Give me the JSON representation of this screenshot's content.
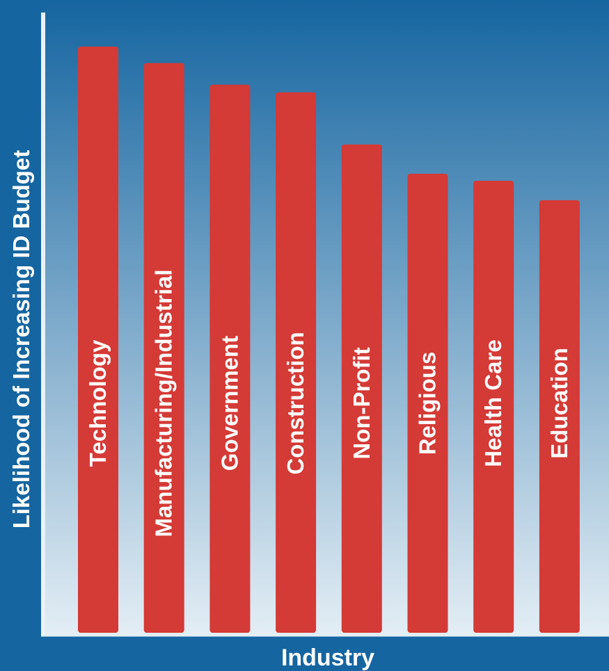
{
  "chart_data": {
    "type": "bar",
    "orientation": "vertical",
    "xlabel": "Industry",
    "ylabel": "Likelihood of Increasing ID Budget",
    "categories": [
      "Technology",
      "Manufacturing/Industrial",
      "Government",
      "Construction",
      "Non-Profit",
      "Religious",
      "Health Care",
      "Education"
    ],
    "values": [
      100,
      97.2,
      93.5,
      92.2,
      83.3,
      78.3,
      77.1,
      73.8
    ],
    "ylim": [
      0,
      100
    ],
    "grid": false,
    "legend": "none",
    "bar_label_position": "inside-vertical",
    "colors": {
      "bar": "#d43a36",
      "background_top": "#1565a0",
      "background_bottom": "#e4eef5",
      "axis": "#e9f2f8",
      "text": "#ffffff",
      "frame": "#1565a0"
    }
  }
}
